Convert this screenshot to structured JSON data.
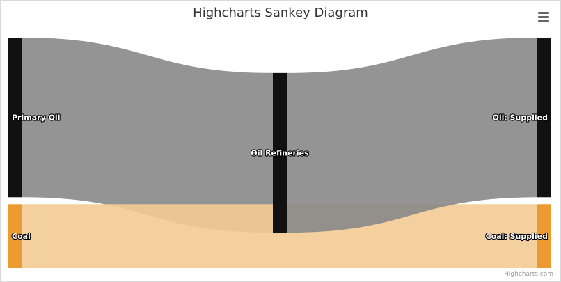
{
  "chart": {
    "title": "Highcharts Sankey Diagram",
    "credits": "Highcharts.com",
    "menu_icon": "hamburger-menu-icon"
  },
  "chart_data": {
    "type": "sankey",
    "title": "Highcharts Sankey Diagram",
    "nodes": [
      {
        "id": "Primary Oil",
        "name": "Primary Oil",
        "column": 0,
        "color": "#111111"
      },
      {
        "id": "Coal",
        "name": "Coal",
        "column": 0,
        "color": "#eb9b30"
      },
      {
        "id": "Oil Refineries",
        "name": "Oil Refineries",
        "column": 1,
        "color": "#111111"
      },
      {
        "id": "Oil: Supplied",
        "name": "Oil: Supplied",
        "column": 2,
        "color": "#111111"
      },
      {
        "id": "Coal: Supplied",
        "name": "Coal: Supplied",
        "column": 2,
        "color": "#eb9b30"
      }
    ],
    "links": [
      {
        "from": "Primary Oil",
        "to": "Oil Refineries",
        "weight": 100,
        "color": "#888888"
      },
      {
        "from": "Coal",
        "to": "Coal: Supplied",
        "weight": 40,
        "color": "#f3cb94"
      },
      {
        "from": "Oil Refineries",
        "to": "Oil: Supplied",
        "weight": 100,
        "color": "#888888"
      }
    ]
  }
}
